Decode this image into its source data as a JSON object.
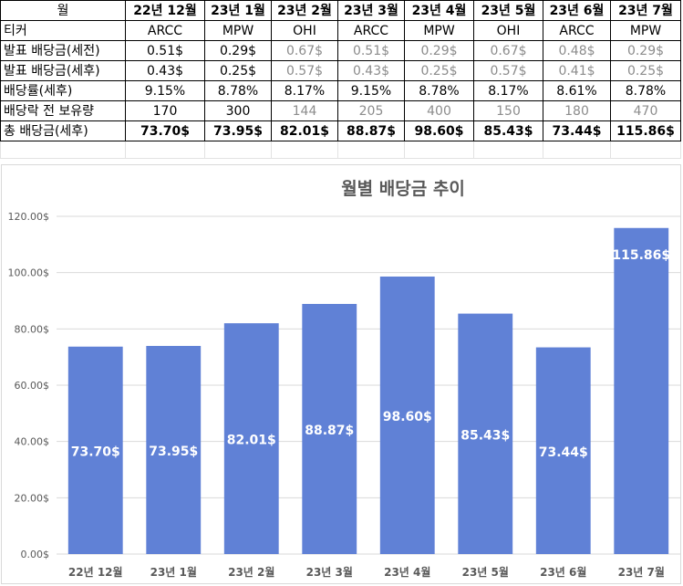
{
  "table": {
    "header": {
      "label": "월",
      "months": [
        "22년 12월",
        "23년 1월",
        "23년 2월",
        "23년 3월",
        "23년 4월",
        "23년 5월",
        "23년 6월",
        "23년 7월"
      ]
    },
    "rows": [
      {
        "label": "티커",
        "values": [
          "ARCC",
          "MPW",
          "OHI",
          "ARCC",
          "MPW",
          "OHI",
          "ARCC",
          "MPW"
        ]
      },
      {
        "label": "발표 배당금(세전)",
        "values": [
          "0.51$",
          "0.29$",
          "0.67$",
          "0.51$",
          "0.29$",
          "0.67$",
          "0.48$",
          "0.29$"
        ]
      },
      {
        "label": "발표 배당금(세후)",
        "values": [
          "0.43$",
          "0.25$",
          "0.57$",
          "0.43$",
          "0.25$",
          "0.57$",
          "0.41$",
          "0.25$"
        ]
      },
      {
        "label": "배당률(세후)",
        "values": [
          "9.15%",
          "8.78%",
          "8.17%",
          "9.15%",
          "8.78%",
          "8.17%",
          "8.61%",
          "8.78%"
        ]
      },
      {
        "label": "배당락 전 보유량",
        "values": [
          "170",
          "300",
          "144",
          "205",
          "400",
          "150",
          "180",
          "470"
        ]
      }
    ],
    "total": {
      "label": "총 배당금(세후)",
      "values": [
        "73.70$",
        "73.95$",
        "82.01$",
        "88.87$",
        "98.60$",
        "85.43$",
        "73.44$",
        "115.86$"
      ]
    }
  },
  "colors": {
    "bar": "#6081d6",
    "grid": "#d9d9d9",
    "axis_text": "#595959",
    "title": "#595959",
    "gray_text": "#8c8c8c"
  },
  "chart_data": {
    "type": "bar",
    "title": "월별 배당금 추이",
    "categories": [
      "22년 12월",
      "23년 1월",
      "23년 2월",
      "23년 3월",
      "23년 4월",
      "23년 5월",
      "23년 6월",
      "23년 7월"
    ],
    "values": [
      73.7,
      73.95,
      82.01,
      88.87,
      98.6,
      85.43,
      73.44,
      115.86
    ],
    "data_labels": [
      "73.70$",
      "73.95$",
      "82.01$",
      "88.87$",
      "98.60$",
      "85.43$",
      "73.44$",
      "115.86$"
    ],
    "yticks": [
      0,
      20,
      40,
      60,
      80,
      100,
      120
    ],
    "ytick_labels": [
      "0.00$",
      "20.00$",
      "40.00$",
      "60.00$",
      "80.00$",
      "100.00$",
      "120.00$"
    ],
    "ylim": [
      0,
      120
    ],
    "xlabel": "",
    "ylabel": "",
    "grid": true
  }
}
